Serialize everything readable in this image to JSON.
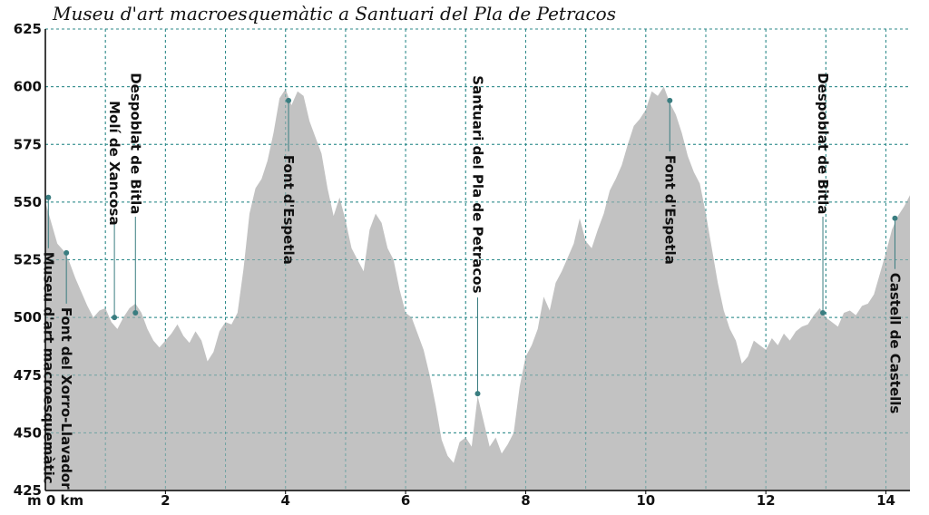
{
  "chart_data": {
    "type": "area",
    "title": "Museu d'art macroesquemàtic a Santuari del Pla de Petracos",
    "x_unit_label": "m 0 km",
    "xlim": [
      0,
      14.4
    ],
    "ylim": [
      425,
      625
    ],
    "yticks": [
      425,
      450,
      475,
      500,
      525,
      550,
      575,
      600,
      625
    ],
    "xticks": [
      2,
      4,
      6,
      8,
      10,
      12,
      14
    ],
    "grid": true,
    "colors": {
      "fill": "#c2c2c2",
      "grid": "#2e8b8b",
      "marker": "#3a7d80",
      "axis": "#000000"
    },
    "profile": [
      [
        0.0,
        550
      ],
      [
        0.1,
        541
      ],
      [
        0.2,
        532
      ],
      [
        0.3,
        529
      ],
      [
        0.4,
        524
      ],
      [
        0.5,
        517
      ],
      [
        0.6,
        511
      ],
      [
        0.7,
        505
      ],
      [
        0.8,
        500
      ],
      [
        0.9,
        503
      ],
      [
        1.0,
        504
      ],
      [
        1.1,
        498
      ],
      [
        1.2,
        495
      ],
      [
        1.3,
        500
      ],
      [
        1.4,
        504
      ],
      [
        1.5,
        506
      ],
      [
        1.6,
        502
      ],
      [
        1.7,
        495
      ],
      [
        1.8,
        490
      ],
      [
        1.9,
        487
      ],
      [
        2.0,
        490
      ],
      [
        2.1,
        493
      ],
      [
        2.2,
        497
      ],
      [
        2.3,
        492
      ],
      [
        2.4,
        489
      ],
      [
        2.5,
        494
      ],
      [
        2.6,
        490
      ],
      [
        2.7,
        481
      ],
      [
        2.8,
        485
      ],
      [
        2.9,
        494
      ],
      [
        3.0,
        498
      ],
      [
        3.1,
        497
      ],
      [
        3.2,
        502
      ],
      [
        3.3,
        521
      ],
      [
        3.4,
        545
      ],
      [
        3.5,
        556
      ],
      [
        3.6,
        560
      ],
      [
        3.7,
        568
      ],
      [
        3.8,
        580
      ],
      [
        3.9,
        595
      ],
      [
        4.0,
        599
      ],
      [
        4.1,
        592
      ],
      [
        4.2,
        598
      ],
      [
        4.3,
        596
      ],
      [
        4.4,
        585
      ],
      [
        4.5,
        578
      ],
      [
        4.6,
        571
      ],
      [
        4.7,
        556
      ],
      [
        4.8,
        544
      ],
      [
        4.9,
        552
      ],
      [
        5.0,
        542
      ],
      [
        5.1,
        530
      ],
      [
        5.2,
        525
      ],
      [
        5.3,
        520
      ],
      [
        5.4,
        538
      ],
      [
        5.5,
        545
      ],
      [
        5.6,
        541
      ],
      [
        5.7,
        530
      ],
      [
        5.8,
        525
      ],
      [
        5.9,
        512
      ],
      [
        6.0,
        502
      ],
      [
        6.1,
        500
      ],
      [
        6.2,
        493
      ],
      [
        6.3,
        486
      ],
      [
        6.4,
        475
      ],
      [
        6.5,
        462
      ],
      [
        6.6,
        447
      ],
      [
        6.7,
        440
      ],
      [
        6.8,
        437
      ],
      [
        6.9,
        446
      ],
      [
        7.0,
        448
      ],
      [
        7.1,
        444
      ],
      [
        7.2,
        466
      ],
      [
        7.3,
        455
      ],
      [
        7.4,
        444
      ],
      [
        7.5,
        448
      ],
      [
        7.6,
        441
      ],
      [
        7.7,
        445
      ],
      [
        7.8,
        450
      ],
      [
        7.9,
        470
      ],
      [
        8.0,
        483
      ],
      [
        8.1,
        488
      ],
      [
        8.2,
        495
      ],
      [
        8.3,
        509
      ],
      [
        8.4,
        503
      ],
      [
        8.5,
        515
      ],
      [
        8.6,
        520
      ],
      [
        8.7,
        526
      ],
      [
        8.8,
        532
      ],
      [
        8.9,
        543
      ],
      [
        9.0,
        533
      ],
      [
        9.1,
        530
      ],
      [
        9.2,
        538
      ],
      [
        9.3,
        545
      ],
      [
        9.4,
        555
      ],
      [
        9.5,
        560
      ],
      [
        9.6,
        566
      ],
      [
        9.7,
        575
      ],
      [
        9.8,
        583
      ],
      [
        9.9,
        586
      ],
      [
        10.0,
        590
      ],
      [
        10.1,
        598
      ],
      [
        10.2,
        596
      ],
      [
        10.3,
        600
      ],
      [
        10.4,
        593
      ],
      [
        10.5,
        588
      ],
      [
        10.6,
        580
      ],
      [
        10.7,
        570
      ],
      [
        10.8,
        563
      ],
      [
        10.9,
        558
      ],
      [
        11.0,
        545
      ],
      [
        11.1,
        530
      ],
      [
        11.2,
        515
      ],
      [
        11.3,
        503
      ],
      [
        11.4,
        495
      ],
      [
        11.5,
        490
      ],
      [
        11.6,
        480
      ],
      [
        11.7,
        483
      ],
      [
        11.8,
        490
      ],
      [
        11.9,
        488
      ],
      [
        12.0,
        486
      ],
      [
        12.1,
        491
      ],
      [
        12.2,
        488
      ],
      [
        12.3,
        493
      ],
      [
        12.4,
        490
      ],
      [
        12.5,
        494
      ],
      [
        12.6,
        496
      ],
      [
        12.7,
        497
      ],
      [
        12.8,
        501
      ],
      [
        12.9,
        504
      ],
      [
        13.0,
        500
      ],
      [
        13.1,
        498
      ],
      [
        13.2,
        496
      ],
      [
        13.3,
        502
      ],
      [
        13.4,
        503
      ],
      [
        13.5,
        501
      ],
      [
        13.6,
        505
      ],
      [
        13.7,
        506
      ],
      [
        13.8,
        510
      ],
      [
        13.9,
        519
      ],
      [
        14.0,
        528
      ],
      [
        14.1,
        538
      ],
      [
        14.2,
        544
      ],
      [
        14.3,
        548
      ],
      [
        14.4,
        553
      ]
    ],
    "points": [
      {
        "name": "Museu d'art macroesquemàtic",
        "x": 0.05,
        "y": 552,
        "label_side": "below"
      },
      {
        "name": "Font del Xorro-Llavador",
        "x": 0.35,
        "y": 528,
        "label_side": "below"
      },
      {
        "name": "Molí de Xancosa",
        "x": 1.15,
        "y": 500,
        "label_side": "above"
      },
      {
        "name": "Despoblat de Bitla",
        "x": 1.5,
        "y": 502,
        "label_side": "above"
      },
      {
        "name": "Font d'Espetla",
        "x": 4.05,
        "y": 594,
        "label_side": "below"
      },
      {
        "name": "Santuari del Pla de Petracos",
        "x": 7.2,
        "y": 467,
        "label_side": "above"
      },
      {
        "name": "Font d'Espetla",
        "x": 10.4,
        "y": 594,
        "label_side": "below"
      },
      {
        "name": "Despoblat de Bitla",
        "x": 12.95,
        "y": 502,
        "label_side": "above"
      },
      {
        "name": "Castell de Castells",
        "x": 14.15,
        "y": 543,
        "label_side": "below"
      }
    ]
  }
}
